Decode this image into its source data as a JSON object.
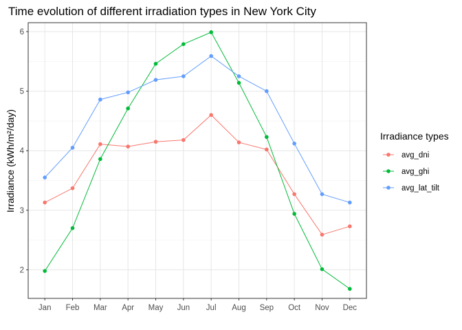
{
  "chart_data": {
    "type": "line",
    "title": "Time evolution of different irradiation types in New York City",
    "xlabel": "",
    "ylabel": "Irradiance (kWh/m²/day)",
    "categories": [
      "Jan",
      "Feb",
      "Mar",
      "Apr",
      "May",
      "Jun",
      "Jul",
      "Aug",
      "Sep",
      "Oct",
      "Nov",
      "Dec"
    ],
    "ylim": [
      1.52,
      6.15
    ],
    "yticks": [
      2,
      3,
      4,
      5,
      6
    ],
    "grid": true,
    "legend": {
      "title": "Irradiance types",
      "position": "right"
    },
    "series": [
      {
        "name": "avg_dni",
        "color": "#F8766D",
        "values": [
          3.13,
          3.37,
          4.11,
          4.07,
          4.15,
          4.18,
          4.6,
          4.14,
          4.02,
          3.27,
          2.59,
          2.73
        ]
      },
      {
        "name": "avg_ghi",
        "color": "#00BA38",
        "values": [
          1.98,
          2.7,
          3.86,
          4.71,
          5.46,
          5.79,
          5.99,
          5.14,
          4.23,
          2.94,
          2.01,
          1.68
        ]
      },
      {
        "name": "avg_lat_tilt",
        "color": "#619CFF",
        "values": [
          3.55,
          4.05,
          4.86,
          4.98,
          5.19,
          5.25,
          5.59,
          5.25,
          5.0,
          4.12,
          3.27,
          3.13
        ]
      }
    ]
  }
}
